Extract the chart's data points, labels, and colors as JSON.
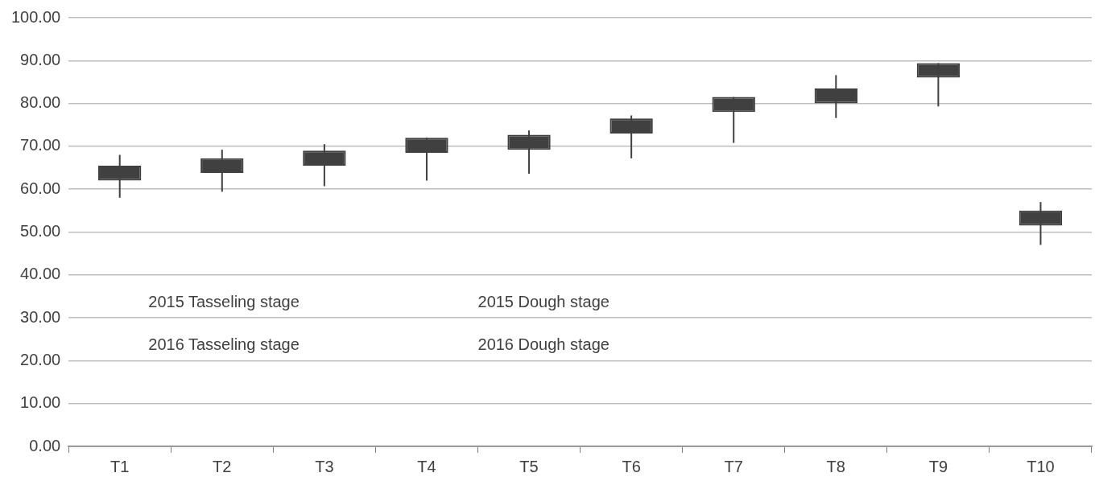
{
  "chart_data": {
    "type": "candlestick",
    "categories": [
      "T1",
      "T2",
      "T3",
      "T4",
      "T5",
      "T6",
      "T7",
      "T8",
      "T9",
      "T10"
    ],
    "ohlc": [
      [
        65.5,
        68,
        58,
        62
      ],
      [
        67.2,
        69.2,
        59.4,
        63.8
      ],
      [
        69,
        70.5,
        60.7,
        65.5
      ],
      [
        72,
        72,
        62,
        68.5
      ],
      [
        72.7,
        73.7,
        63.6,
        69.2
      ],
      [
        76.5,
        77.2,
        67.2,
        73
      ],
      [
        81.5,
        81.5,
        70.8,
        78
      ],
      [
        83.5,
        86.6,
        76.6,
        80
      ],
      [
        89.4,
        89.4,
        79.3,
        86
      ],
      [
        55,
        57,
        47,
        51.5
      ]
    ],
    "color": "#404040",
    "ylim": [
      0,
      100
    ],
    "yticks": [
      {
        "value": 0,
        "label": "0.00"
      },
      {
        "value": 10,
        "label": "10.00"
      },
      {
        "value": 20,
        "label": "20.00"
      },
      {
        "value": 30,
        "label": "30.00"
      },
      {
        "value": 40,
        "label": "40.00"
      },
      {
        "value": 50,
        "label": "50.00"
      },
      {
        "value": 60,
        "label": "60.00"
      },
      {
        "value": 70,
        "label": "70.00"
      },
      {
        "value": 80,
        "label": "80.00"
      },
      {
        "value": 90,
        "label": "90.00"
      },
      {
        "value": 100,
        "label": "100.00"
      }
    ],
    "grid": "y",
    "annotations": [
      "2015 Tasseling stage",
      "2015 Dough stage",
      "2016 Tasseling stage",
      "2016 Dough stage"
    ]
  }
}
